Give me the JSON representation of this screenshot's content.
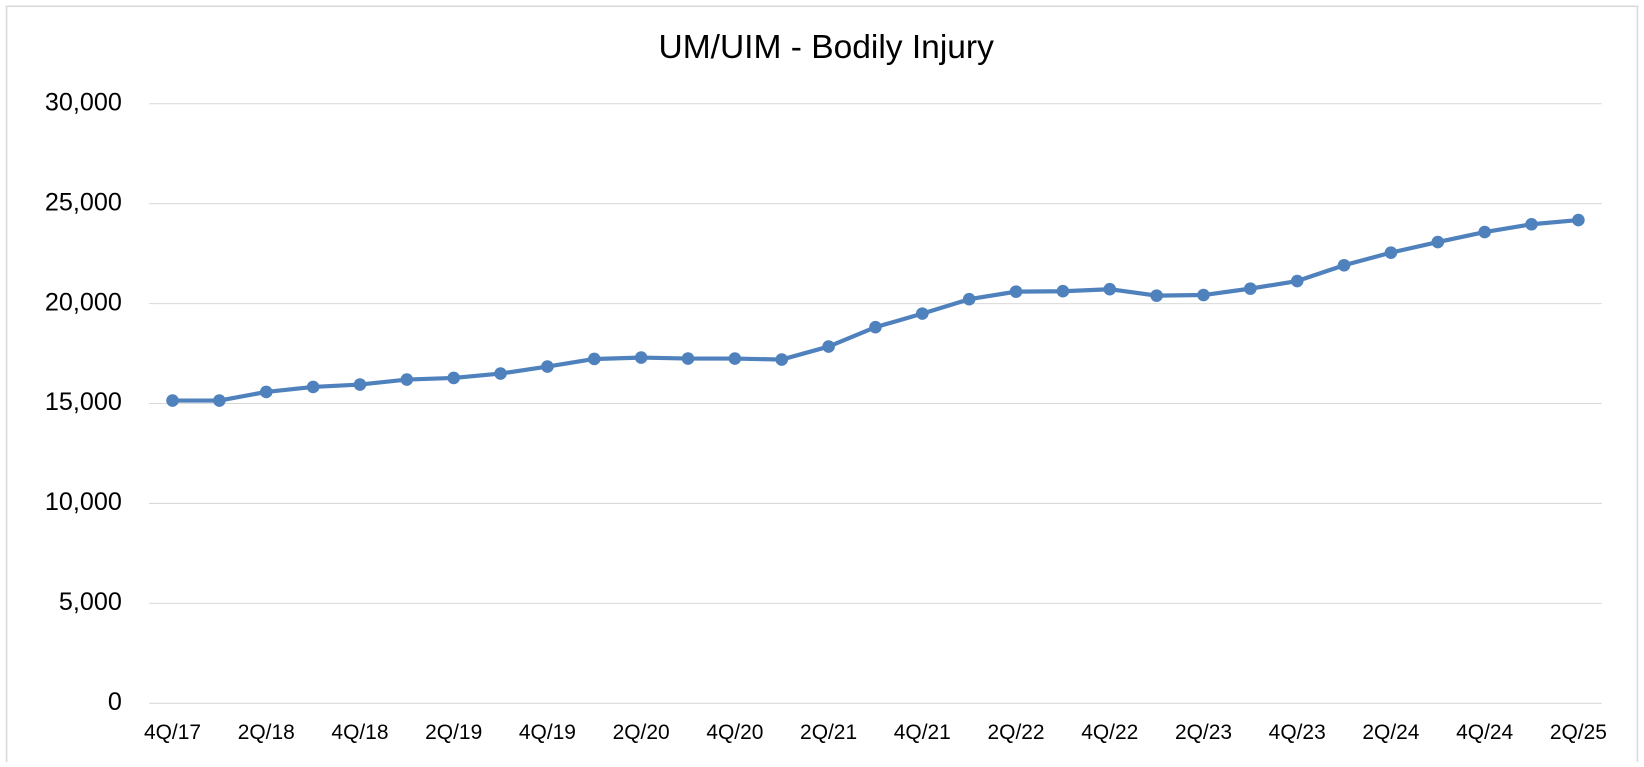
{
  "chart_data": {
    "type": "line",
    "title": "UM/UIM - Bodily Injury",
    "categories": [
      "4Q/17",
      null,
      "2Q/18",
      null,
      "4Q/18",
      null,
      "2Q/19",
      null,
      "4Q/19",
      null,
      "2Q/20",
      null,
      "4Q/20",
      null,
      "2Q/21",
      null,
      "4Q/21",
      null,
      "2Q/22",
      null,
      "4Q/22",
      null,
      "2Q/23",
      null,
      "4Q/23",
      null,
      "2Q/24",
      null,
      "4Q/24",
      null,
      "2Q/25"
    ],
    "values": [
      15150,
      15150,
      15580,
      15830,
      15950,
      16200,
      16280,
      16500,
      16850,
      17230,
      17300,
      17250,
      17250,
      17200,
      17850,
      18820,
      19500,
      20220,
      20600,
      20620,
      20720,
      20400,
      20430,
      20750,
      21130,
      21920,
      22550,
      23080,
      23580,
      23970,
      24180
    ],
    "color": "#4f81bd",
    "ylim": [
      0,
      30000
    ],
    "yticks": [
      0,
      {
        "value": 5000,
        "label": "5,000"
      },
      {
        "value": 10000,
        "label": "10,000"
      },
      {
        "value": 15000,
        "label": "15,000"
      },
      {
        "value": 20000,
        "label": "20,000"
      },
      {
        "value": 25000,
        "label": "25,000"
      },
      {
        "value": 30000,
        "label": "30,000"
      }
    ],
    "grid": true
  }
}
